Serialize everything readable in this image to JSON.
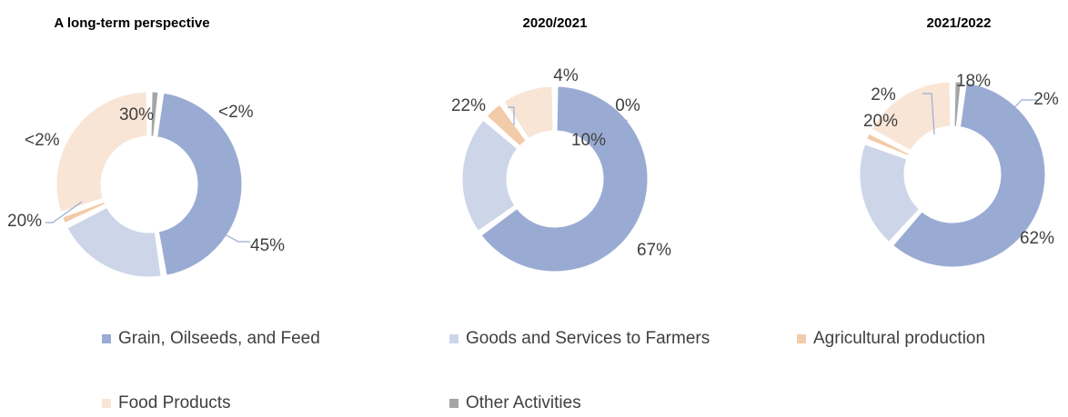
{
  "colors": {
    "grain": "#9aabd3",
    "goods": "#cdd6e9",
    "agri": "#f2cba8",
    "food": "#f8e5d6",
    "other": "#a5a5a5",
    "text": "#404040",
    "leader": "#9aabd3"
  },
  "legend": [
    {
      "label": "Grain, Oilseeds, and Feed",
      "color_key": "grain"
    },
    {
      "label": "Goods and Services to Farmers",
      "color_key": "goods"
    },
    {
      "label": "Agricultural production",
      "color_key": "agri"
    },
    {
      "label": "Food Products",
      "color_key": "food"
    },
    {
      "label": "Other Activities",
      "color_key": "other"
    }
  ],
  "chart_data": [
    {
      "type": "pie",
      "title": "A long-term perspective",
      "slices": [
        {
          "category": "Grain, Oilseeds, and Feed",
          "value": 45,
          "label": "45%"
        },
        {
          "category": "Goods and Services to Farmers",
          "value": 20,
          "label": "20%"
        },
        {
          "category": "Agricultural production",
          "value": 2,
          "label": "<2%"
        },
        {
          "category": "Food Products",
          "value": 30,
          "label": "30%"
        },
        {
          "category": "Other Activities",
          "value": 2,
          "label": "<2%"
        }
      ]
    },
    {
      "type": "pie",
      "title": "2020/2021",
      "slices": [
        {
          "category": "Grain, Oilseeds, and Feed",
          "value": 67,
          "label": "67%"
        },
        {
          "category": "Goods and Services to Farmers",
          "value": 22,
          "label": "22%"
        },
        {
          "category": "Agricultural production",
          "value": 4,
          "label": "4%"
        },
        {
          "category": "Food Products",
          "value": 10,
          "label": "10%"
        },
        {
          "category": "Other Activities",
          "value": 0,
          "label": "0%"
        }
      ]
    },
    {
      "type": "pie",
      "title": "2021/2022",
      "slices": [
        {
          "category": "Grain, Oilseeds, and Feed",
          "value": 62,
          "label": "62%"
        },
        {
          "category": "Goods and Services to Farmers",
          "value": 20,
          "label": "20%"
        },
        {
          "category": "Agricultural production",
          "value": 2,
          "label": "2%"
        },
        {
          "category": "Food Products",
          "value": 18,
          "label": "18%"
        },
        {
          "category": "Other Activities",
          "value": 2,
          "label": "2%"
        }
      ]
    }
  ]
}
